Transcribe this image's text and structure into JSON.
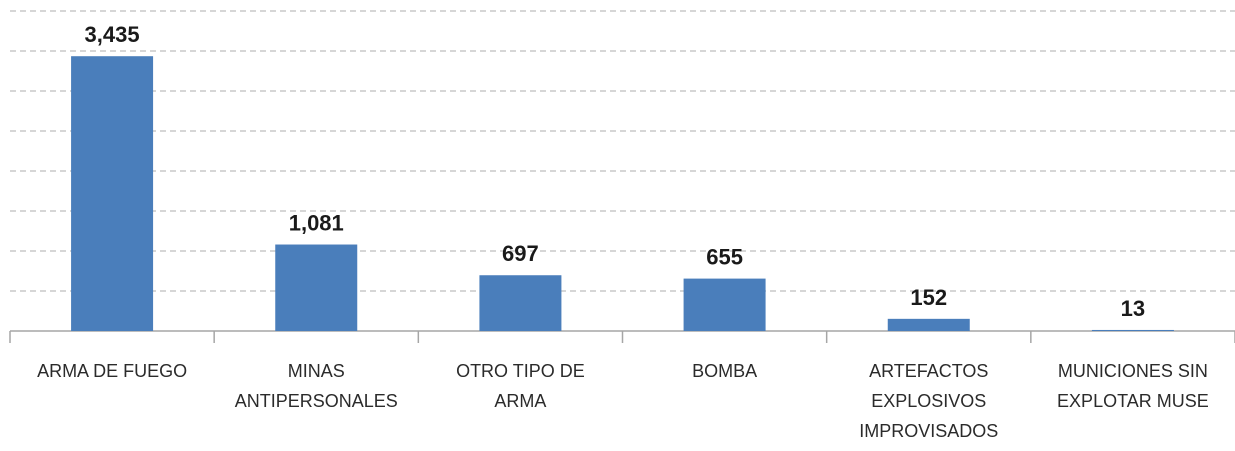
{
  "chart_data": {
    "type": "bar",
    "categories": [
      "ARMA DE FUEGO",
      "MINAS ANTIPERSONALES",
      "OTRO TIPO DE ARMA",
      "BOMBA",
      "ARTEFACTOS EXPLOSIVOS IMPROVISADOS",
      "MUNICIONES SIN EXPLOTAR MUSE"
    ],
    "values": [
      3435,
      1081,
      697,
      655,
      152,
      13
    ],
    "value_labels": [
      "3,435",
      "1,081",
      "697",
      "655",
      "152",
      "13"
    ],
    "color": "#4a7ebb",
    "ylim": [
      0,
      4000
    ],
    "yticks": [
      0,
      500,
      1000,
      1500,
      2000,
      2500,
      3000,
      3500,
      4000
    ],
    "grid": true
  }
}
